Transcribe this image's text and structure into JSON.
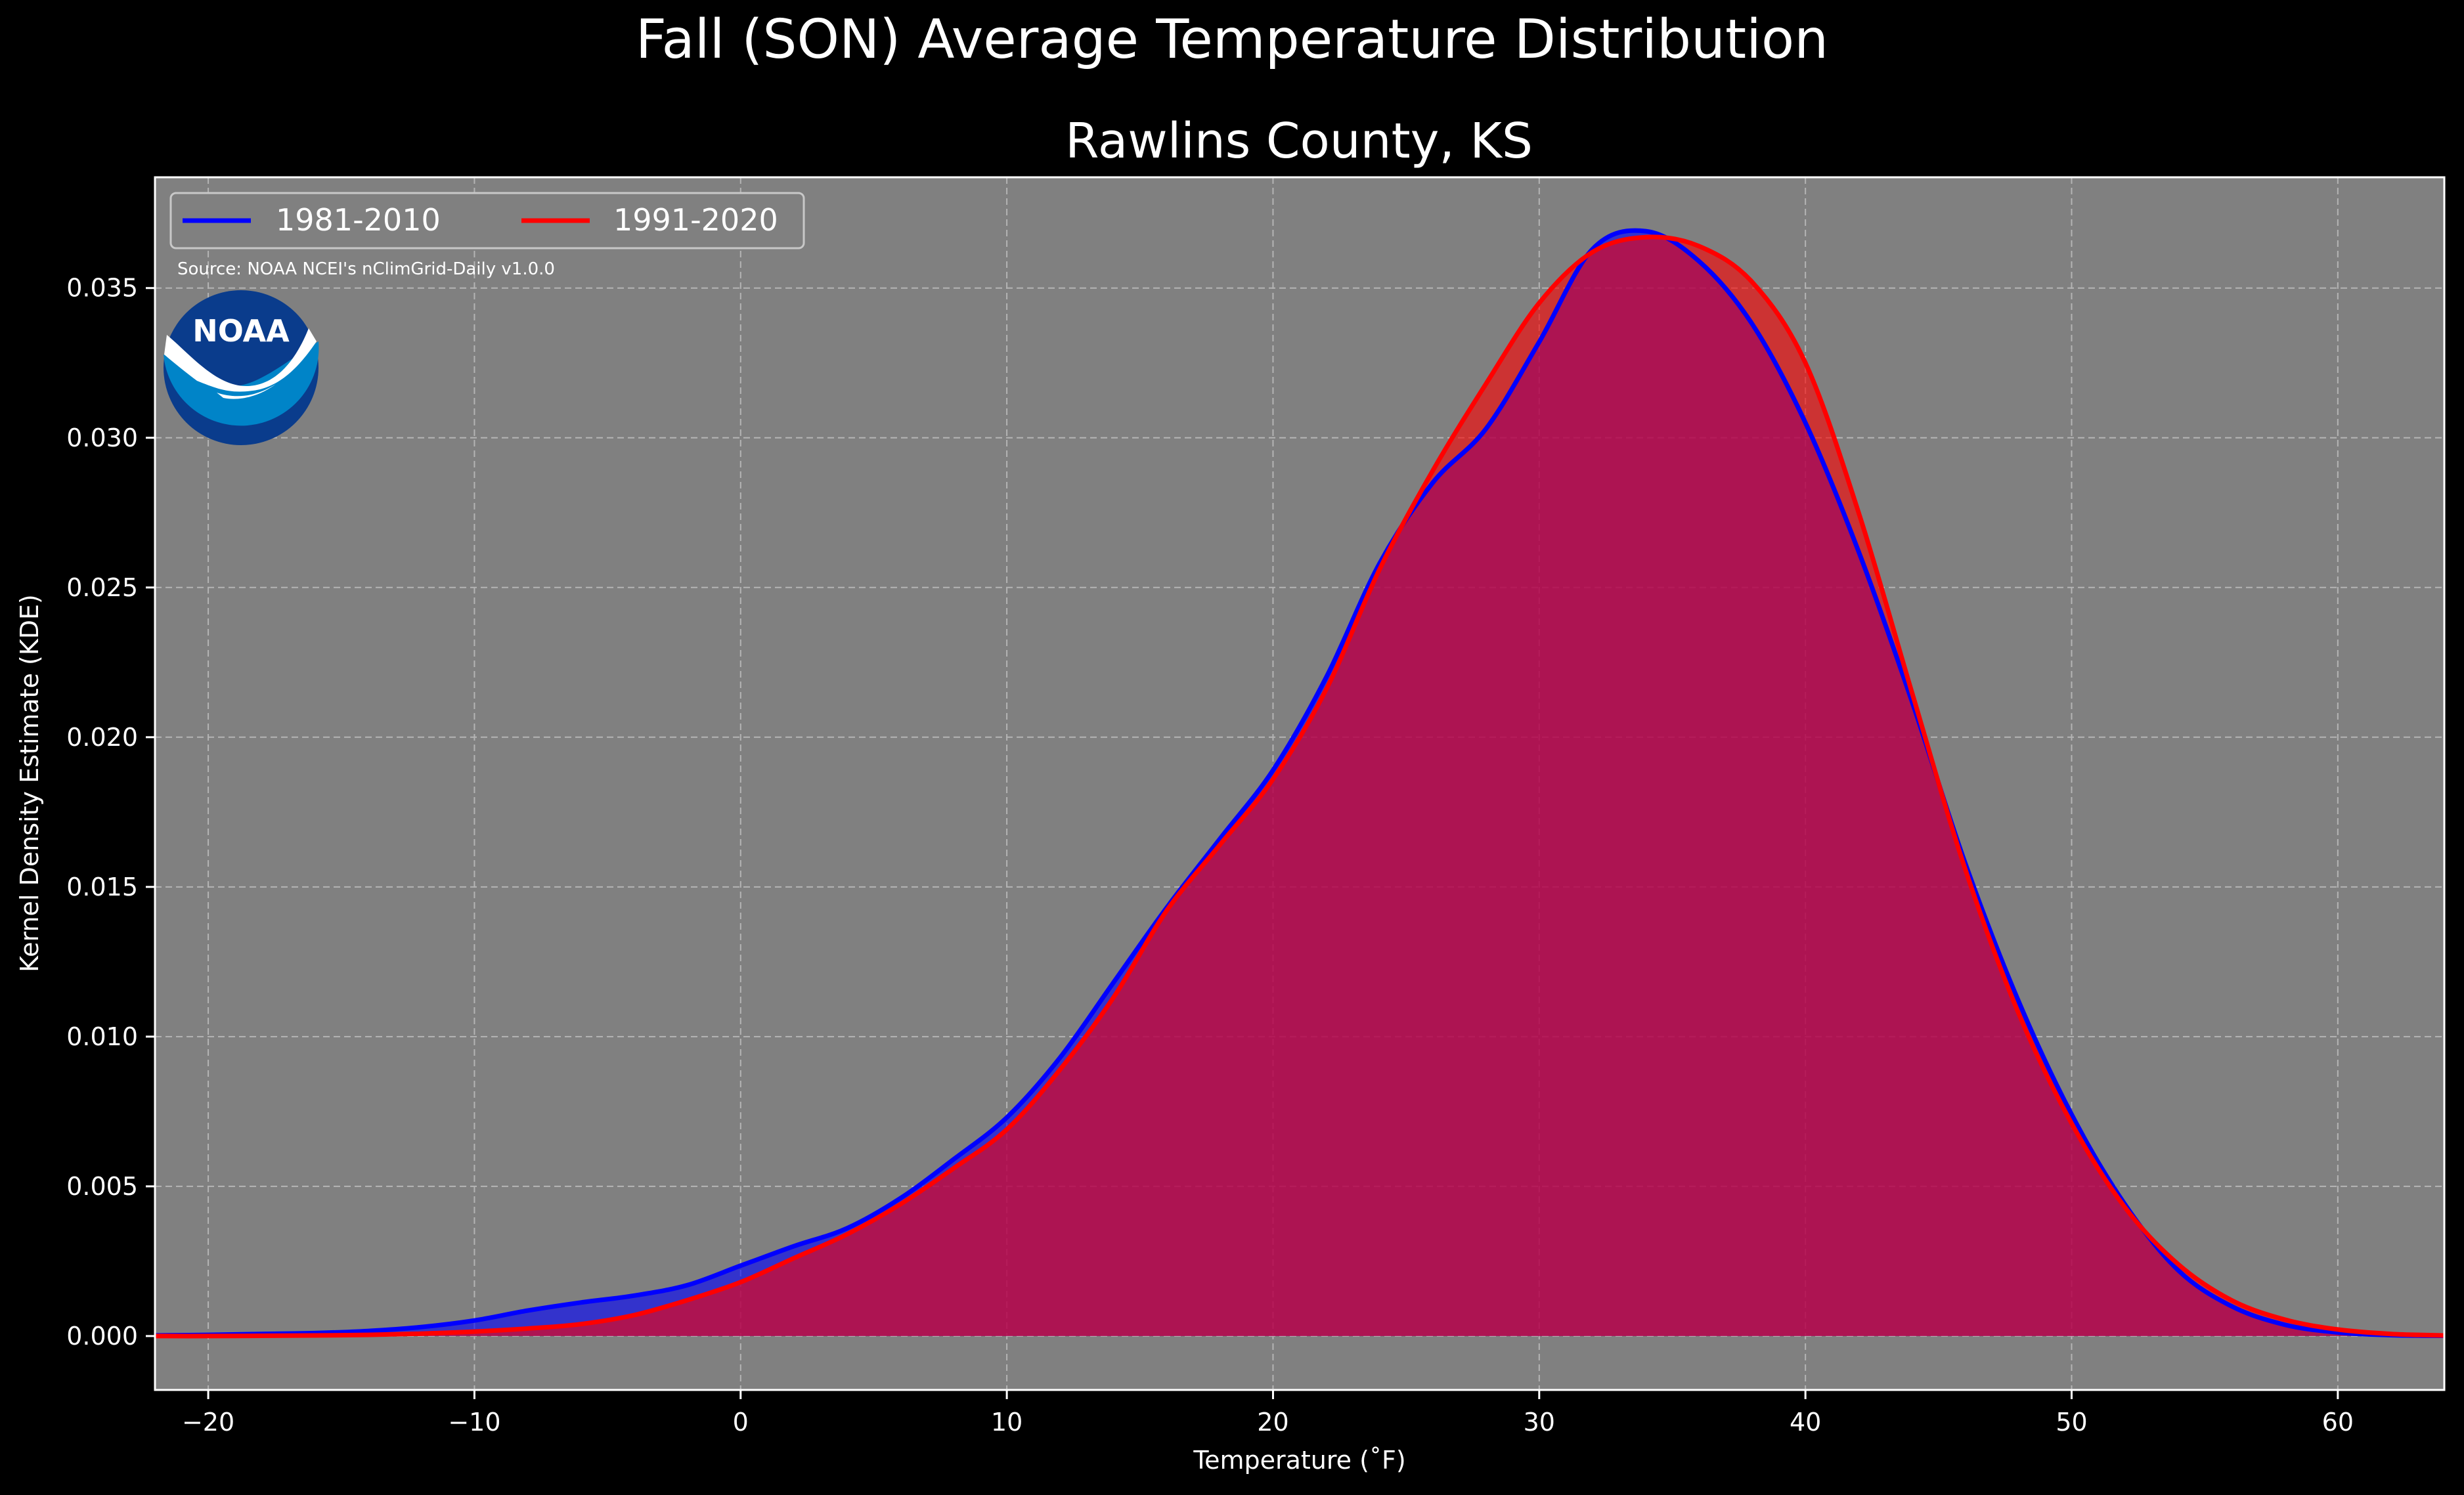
{
  "suptitle": "Fall (SON) Average Temperature Distribution",
  "chart_data": {
    "type": "area",
    "title": "Rawlins County, KS",
    "xlabel": "Temperature (˚F)",
    "ylabel": "Kernel Density Estimate (KDE)",
    "xlim": [
      -22,
      64
    ],
    "ylim": [
      -0.0018,
      0.0387
    ],
    "xticks": [
      -20,
      -10,
      0,
      10,
      20,
      30,
      40,
      50,
      60
    ],
    "xtick_labels": [
      "−20",
      "−10",
      "0",
      "10",
      "20",
      "30",
      "40",
      "50",
      "60"
    ],
    "yticks": [
      0.0,
      0.005,
      0.01,
      0.015,
      0.02,
      0.025,
      0.03,
      0.035
    ],
    "ytick_labels": [
      "0.000",
      "0.005",
      "0.010",
      "0.015",
      "0.020",
      "0.025",
      "0.030",
      "0.035"
    ],
    "grid": true,
    "legend_position": "upper-left",
    "background": "#808080",
    "series": [
      {
        "name": "1981-2010",
        "color": "#0000ff",
        "x": [
          -22,
          -20,
          -18,
          -16,
          -14,
          -12,
          -10,
          -8,
          -6,
          -4,
          -2,
          0,
          2,
          4,
          6,
          8,
          10,
          12,
          14,
          16,
          18,
          20,
          22,
          24,
          26,
          28,
          30,
          32,
          34,
          36,
          38,
          40,
          42,
          44,
          46,
          48,
          50,
          52,
          54,
          56,
          58,
          60,
          62,
          64
        ],
        "y": [
          2e-05,
          4e-05,
          7e-05,
          0.0001,
          0.00017,
          0.0003,
          0.00052,
          0.00085,
          0.00112,
          0.00135,
          0.0017,
          0.00235,
          0.003,
          0.0036,
          0.0046,
          0.0059,
          0.0073,
          0.0093,
          0.0118,
          0.0143,
          0.0166,
          0.0189,
          0.022,
          0.0258,
          0.0285,
          0.0303,
          0.0332,
          0.0363,
          0.0369,
          0.0359,
          0.0338,
          0.0305,
          0.0262,
          0.0212,
          0.0158,
          0.0112,
          0.0074,
          0.0044,
          0.0022,
          0.001,
          0.00038,
          0.00012,
          3e-05,
          1e-05
        ]
      },
      {
        "name": "1991-2020",
        "color": "#ff0000",
        "x": [
          -22,
          -20,
          -18,
          -16,
          -14,
          -12,
          -10,
          -8,
          -6,
          -4,
          -2,
          0,
          2,
          4,
          6,
          8,
          10,
          12,
          14,
          16,
          18,
          20,
          22,
          24,
          26,
          28,
          30,
          32,
          34,
          36,
          38,
          40,
          42,
          44,
          46,
          48,
          50,
          52,
          54,
          56,
          58,
          60,
          62,
          64
        ],
        "y": [
          0.0,
          0.0,
          1e-05,
          2e-05,
          4e-05,
          8e-05,
          0.00015,
          0.00025,
          0.0004,
          0.0007,
          0.0012,
          0.0018,
          0.0026,
          0.0034,
          0.0044,
          0.0056,
          0.0069,
          0.0089,
          0.0113,
          0.0142,
          0.0164,
          0.0186,
          0.0216,
          0.0256,
          0.0289,
          0.0318,
          0.0345,
          0.0362,
          0.0367,
          0.0364,
          0.0352,
          0.0325,
          0.0275,
          0.0215,
          0.0156,
          0.0108,
          0.0071,
          0.0043,
          0.0024,
          0.0012,
          0.00055,
          0.00022,
          7e-05,
          2e-05
        ]
      }
    ]
  },
  "source_note": "Source: NOAA NCEI's nClimGrid-Daily v1.0.0",
  "logo": {
    "icon": "noaa-logo-icon",
    "text": "NOAA",
    "outer_color": "#0a3c8c",
    "inner_color": "#0084c8"
  }
}
